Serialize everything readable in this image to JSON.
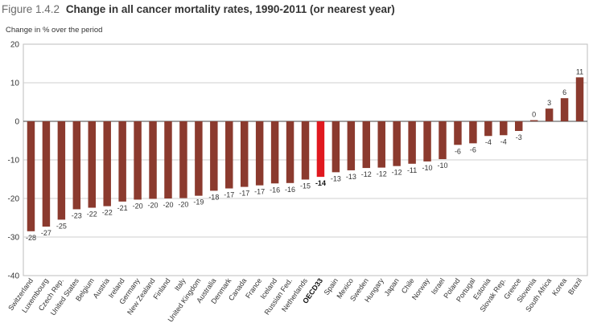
{
  "figure": {
    "number": "Figure 1.4.2",
    "title": "Change in all cancer mortality rates, 1990-2011 (or nearest year)"
  },
  "colors": {
    "bar": "#8b3a2e",
    "highlight": "#e0191f",
    "grid": "#cfcfcf"
  },
  "chart_data": {
    "type": "bar",
    "title": "Change in all cancer mortality rates, 1990-2011 (or nearest year)",
    "ylabel": "Change in % over the period",
    "xlabel": "",
    "ylim": [
      -40,
      20
    ],
    "yticks": [
      20,
      10,
      0,
      -10,
      -20,
      -30,
      -40
    ],
    "grid": true,
    "highlight": "OECD33",
    "categories": [
      "Switzerland",
      "Luxembourg",
      "Czech Rep.",
      "United States",
      "Belgium",
      "Austria",
      "Ireland",
      "Germany",
      "New Zealand",
      "Finland",
      "Italy",
      "United Kingdom",
      "Australia",
      "Denmark",
      "Canada",
      "France",
      "Iceland",
      "Russian Fed.",
      "Netherlands",
      "OECD33",
      "Spain",
      "Mexico",
      "Sweden",
      "Hungary",
      "Japan",
      "Chile",
      "Norway",
      "Israel",
      "Poland",
      "Portugal",
      "Estonia",
      "Slovak Rep.",
      "Greece",
      "Slovenia",
      "South Africa",
      "Korea",
      "Brazil"
    ],
    "values": [
      -28.5,
      -27.3,
      -25.5,
      -22.8,
      -22.4,
      -22.0,
      -20.8,
      -20.3,
      -20.1,
      -20.0,
      -19.9,
      -19.3,
      -18.0,
      -17.4,
      -17.0,
      -16.6,
      -16.1,
      -16.0,
      -15.1,
      -14.4,
      -13.2,
      -12.7,
      -12.1,
      -12.0,
      -11.6,
      -11.0,
      -10.4,
      -9.8,
      -6.1,
      -5.7,
      -3.8,
      -3.6,
      -2.5,
      0.3,
      3.3,
      6.0,
      11.4
    ],
    "data_labels": [
      "-28",
      "-27",
      "-25",
      "-23",
      "-22",
      "-22",
      "-21",
      "-20",
      "-20",
      "-20",
      "-20",
      "-19",
      "-18",
      "-17",
      "-17",
      "-17",
      "-16",
      "-16",
      "-15",
      "-14",
      "-13",
      "-13",
      "-12",
      "-12",
      "-12",
      "-11",
      "-10",
      "-10",
      "-6",
      "-6",
      "-4",
      "-4",
      "-3",
      "0",
      "3",
      "6",
      "11"
    ]
  }
}
